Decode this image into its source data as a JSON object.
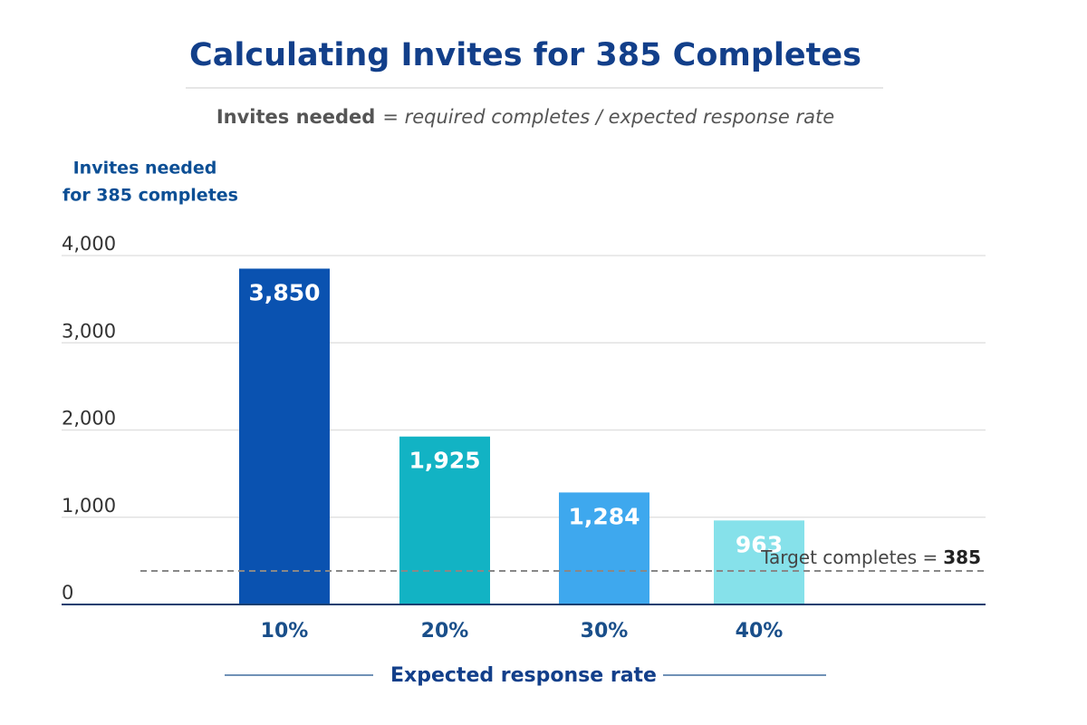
{
  "chart_data": {
    "type": "bar",
    "title": "Calculating Invites for 385 Completes",
    "subtitle_lhs": "Invites needed",
    "subtitle_rhs": "= required completes / expected response rate",
    "y_label": [
      "Invites needed",
      "for 385 completes"
    ],
    "x_label": "Expected response rate",
    "categories": [
      "10%",
      "20%",
      "30%",
      "40%"
    ],
    "values": [
      3850,
      1925,
      1284,
      963
    ],
    "value_labels": [
      "3,850",
      "1,925",
      "1,284",
      "963"
    ],
    "colors": [
      "#0a52b0",
      "#12b3c4",
      "#3ea8ee",
      "#86e1ea"
    ],
    "ylim": [
      0,
      4000
    ],
    "yticks": [
      0,
      {
        "value": 1000,
        "label": "1,000"
      },
      {
        "value": 2000,
        "label": "2,000"
      },
      {
        "value": 3000,
        "label": "3,000"
      },
      {
        "value": 4000,
        "label": "4,000"
      }
    ],
    "grid": true,
    "reference_line": {
      "label": "Target completes =",
      "value": 385
    }
  }
}
